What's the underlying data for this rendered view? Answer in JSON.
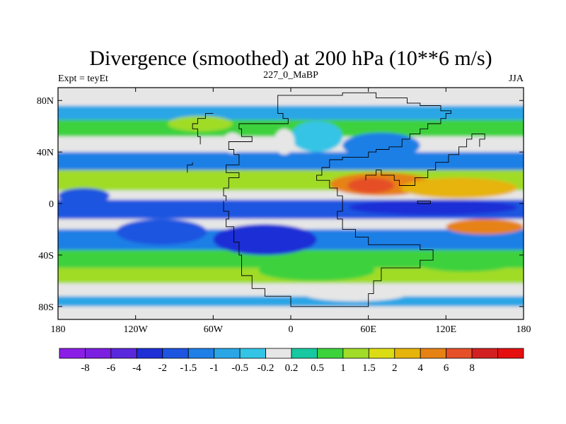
{
  "chart_data": {
    "type": "heatmap",
    "title": "Divergence (smoothed) at 200 hPa (10**6 m/s)",
    "left_label": "Expt = teyEt",
    "center_label": "227_0_MaBP",
    "right_label": "JJA",
    "x_ticks": [
      {
        "value": -180,
        "label": "180"
      },
      {
        "value": -120,
        "label": "120W"
      },
      {
        "value": -60,
        "label": "60W"
      },
      {
        "value": 0,
        "label": "0"
      },
      {
        "value": 60,
        "label": "60E"
      },
      {
        "value": 120,
        "label": "120E"
      },
      {
        "value": 180,
        "label": "180"
      }
    ],
    "y_ticks": [
      {
        "value": 80,
        "label": "80N"
      },
      {
        "value": 40,
        "label": "40N"
      },
      {
        "value": 0,
        "label": "0"
      },
      {
        "value": -40,
        "label": "40S"
      },
      {
        "value": -80,
        "label": "80S"
      }
    ],
    "xlim": [
      -180,
      180
    ],
    "ylim": [
      -90,
      90
    ],
    "colorbar": {
      "colors": [
        "#8a1ee6",
        "#7b1fe0",
        "#5a28dc",
        "#1f2fd6",
        "#1e55e0",
        "#1e7fe6",
        "#2aa6e6",
        "#34c4e6",
        "#e6e6e6",
        "#17c8a0",
        "#3cd23c",
        "#a0dc28",
        "#dcdc14",
        "#e6b40a",
        "#e68214",
        "#e65028",
        "#d22020",
        "#e60f0f"
      ],
      "labels": [
        "-8",
        "-6",
        "-4",
        "-2",
        "-1.5",
        "-1",
        "-0.5",
        "-0.2",
        "0.2",
        "0.5",
        "1",
        "1.5",
        "2",
        "4",
        "6",
        "8"
      ]
    },
    "bands": [
      {
        "lat_from": 90,
        "lat_to": 76,
        "color": "#e6e6e6"
      },
      {
        "lat_from": 76,
        "lat_to": 65,
        "color": "#2aa6e6"
      },
      {
        "lat_from": 65,
        "lat_to": 52,
        "color": "#3cd23c"
      },
      {
        "lat_from": 52,
        "lat_to": 40,
        "color": "#e6e6e6"
      },
      {
        "lat_from": 40,
        "lat_to": 26,
        "color": "#1e7fe6"
      },
      {
        "lat_from": 26,
        "lat_to": 10,
        "color": "#a0dc28"
      },
      {
        "lat_from": 10,
        "lat_to": 3,
        "color": "#e6e6e6"
      },
      {
        "lat_from": 3,
        "lat_to": -12,
        "color": "#1e55e0"
      },
      {
        "lat_from": -12,
        "lat_to": -20,
        "color": "#e6e6e6"
      },
      {
        "lat_from": -20,
        "lat_to": -36,
        "color": "#1e7fe6"
      },
      {
        "lat_from": -36,
        "lat_to": -50,
        "color": "#3cd23c"
      },
      {
        "lat_from": -50,
        "lat_to": -62,
        "color": "#a0dc28"
      },
      {
        "lat_from": -62,
        "lat_to": -72,
        "color": "#e6e6e6"
      },
      {
        "lat_from": -72,
        "lat_to": -80,
        "color": "#2aa6e6"
      },
      {
        "lat_from": -80,
        "lat_to": -90,
        "color": "#e6e6e6"
      }
    ],
    "blobs": [
      {
        "lon": 70,
        "lat": 15,
        "rlon": 40,
        "rlat": 9,
        "color": "#e68214"
      },
      {
        "lon": 62,
        "lat": 14,
        "rlon": 18,
        "rlat": 6,
        "color": "#e65028"
      },
      {
        "lon": 130,
        "lat": 12,
        "rlon": 45,
        "rlat": 8,
        "color": "#e6b40a"
      },
      {
        "lon": 110,
        "lat": -3,
        "rlon": 65,
        "rlat": 6,
        "color": "#1f2fd6"
      },
      {
        "lon": -20,
        "lat": -28,
        "rlon": 40,
        "rlat": 12,
        "color": "#1f2fd6"
      },
      {
        "lon": -100,
        "lat": -22,
        "rlon": 35,
        "rlat": 10,
        "color": "#1e55e0"
      },
      {
        "lon": -160,
        "lat": 6,
        "rlon": 20,
        "rlat": 6,
        "color": "#1e55e0"
      },
      {
        "lon": 20,
        "lat": 52,
        "rlon": 20,
        "rlat": 12,
        "color": "#34c4e6"
      },
      {
        "lon": -45,
        "lat": 47,
        "rlon": 8,
        "rlat": 8,
        "color": "#e6e6e6"
      },
      {
        "lon": -5,
        "lat": 48,
        "rlon": 8,
        "rlat": 10,
        "color": "#e6e6e6"
      },
      {
        "lon": 70,
        "lat": 45,
        "rlon": 30,
        "rlat": 10,
        "color": "#1e7fe6"
      },
      {
        "lon": 150,
        "lat": -18,
        "rlon": 30,
        "rlat": 6,
        "color": "#e68214"
      },
      {
        "lon": 135,
        "lat": -45,
        "rlon": 40,
        "rlat": 8,
        "color": "#3cd23c"
      },
      {
        "lon": 20,
        "lat": -52,
        "rlon": 45,
        "rlat": 8,
        "color": "#3cd23c"
      },
      {
        "lon": 50,
        "lat": -70,
        "rlon": 40,
        "rlat": 6,
        "color": "#e6e6e6"
      },
      {
        "lon": -70,
        "lat": 62,
        "rlon": 25,
        "rlat": 6,
        "color": "#a0dc28"
      }
    ],
    "coastline": [
      [
        [
          -10,
          78
        ],
        [
          -10,
          70
        ],
        [
          -6,
          70
        ],
        [
          -6,
          66
        ],
        [
          -2,
          66
        ],
        [
          -2,
          62
        ],
        [
          -40,
          62
        ],
        [
          -40,
          58
        ],
        [
          -38,
          58
        ],
        [
          -38,
          52
        ],
        [
          -30,
          52
        ],
        [
          -30,
          48
        ],
        [
          -48,
          48
        ],
        [
          -48,
          42
        ],
        [
          -44,
          42
        ],
        [
          -44,
          38
        ],
        [
          -40,
          38
        ],
        [
          -40,
          30
        ],
        [
          -50,
          30
        ],
        [
          -50,
          26
        ],
        [
          -50,
          24
        ],
        [
          -40,
          24
        ],
        [
          -40,
          20
        ],
        [
          -48,
          20
        ],
        [
          -48,
          12
        ],
        [
          -52,
          12
        ],
        [
          -52,
          6
        ],
        [
          -50,
          6
        ],
        [
          -50,
          2
        ]
      ],
      [
        [
          -52,
          2
        ],
        [
          -52,
          -6
        ],
        [
          -48,
          -6
        ],
        [
          -48,
          -12
        ],
        [
          -50,
          -12
        ],
        [
          -50,
          -18
        ],
        [
          -44,
          -18
        ],
        [
          -44,
          -30
        ],
        [
          -40,
          -30
        ],
        [
          -40,
          -40
        ],
        [
          -38,
          -40
        ],
        [
          -38,
          -56
        ],
        [
          -30,
          -56
        ],
        [
          -30,
          -66
        ],
        [
          -20,
          -66
        ],
        [
          -20,
          -72
        ],
        [
          0,
          -72
        ],
        [
          0,
          -80
        ],
        [
          60,
          -80
        ],
        [
          60,
          -70
        ],
        [
          64,
          -70
        ],
        [
          64,
          -60
        ],
        [
          70,
          -60
        ],
        [
          70,
          -50
        ],
        [
          100,
          -50
        ],
        [
          100,
          -44
        ],
        [
          110,
          -44
        ],
        [
          110,
          -36
        ],
        [
          100,
          -36
        ],
        [
          100,
          -32
        ],
        [
          60,
          -32
        ],
        [
          60,
          -26
        ],
        [
          50,
          -26
        ],
        [
          50,
          -20
        ],
        [
          40,
          -20
        ],
        [
          40,
          -12
        ],
        [
          36,
          -12
        ],
        [
          36,
          -6
        ],
        [
          40,
          -6
        ],
        [
          40,
          0
        ]
      ],
      [
        [
          40,
          0
        ],
        [
          40,
          6
        ],
        [
          36,
          6
        ],
        [
          36,
          12
        ],
        [
          30,
          12
        ],
        [
          30,
          18
        ],
        [
          20,
          18
        ],
        [
          20,
          22
        ],
        [
          24,
          22
        ],
        [
          24,
          28
        ],
        [
          30,
          28
        ],
        [
          30,
          34
        ],
        [
          40,
          34
        ],
        [
          40,
          36
        ],
        [
          60,
          36
        ],
        [
          60,
          40
        ],
        [
          66,
          40
        ],
        [
          66,
          42
        ],
        [
          76,
          42
        ],
        [
          76,
          44
        ],
        [
          86,
          44
        ],
        [
          86,
          50
        ],
        [
          92,
          50
        ],
        [
          92,
          54
        ],
        [
          100,
          54
        ],
        [
          100,
          58
        ],
        [
          106,
          58
        ],
        [
          106,
          62
        ],
        [
          116,
          62
        ],
        [
          116,
          66
        ],
        [
          120,
          66
        ],
        [
          120,
          70
        ],
        [
          124,
          70
        ],
        [
          124,
          72
        ],
        [
          116,
          72
        ],
        [
          116,
          76
        ],
        [
          100,
          76
        ],
        [
          100,
          78
        ],
        [
          90,
          78
        ],
        [
          90,
          82
        ],
        [
          66,
          82
        ],
        [
          66,
          86
        ],
        [
          40,
          86
        ],
        [
          40,
          84
        ],
        [
          -10,
          84
        ],
        [
          -10,
          78
        ]
      ],
      [
        [
          58,
          18
        ],
        [
          58,
          22
        ],
        [
          66,
          22
        ],
        [
          66,
          26
        ],
        [
          70,
          26
        ],
        [
          70,
          22
        ],
        [
          80,
          22
        ],
        [
          80,
          18
        ],
        [
          84,
          18
        ],
        [
          84,
          14
        ],
        [
          90,
          14
        ]
      ],
      [
        [
          90,
          14
        ],
        [
          96,
          14
        ],
        [
          96,
          20
        ],
        [
          106,
          20
        ],
        [
          106,
          26
        ],
        [
          112,
          26
        ],
        [
          112,
          32
        ],
        [
          122,
          32
        ],
        [
          122,
          38
        ],
        [
          130,
          38
        ],
        [
          130,
          44
        ],
        [
          136,
          44
        ],
        [
          136,
          50
        ],
        [
          140,
          50
        ],
        [
          140,
          54
        ],
        [
          150,
          54
        ],
        [
          150,
          50
        ],
        [
          146,
          50
        ],
        [
          146,
          44
        ]
      ],
      [
        [
          -70,
          46
        ],
        [
          -70,
          52
        ],
        [
          -72,
          52
        ],
        [
          -72,
          58
        ],
        [
          -76,
          58
        ],
        [
          -76,
          62
        ],
        [
          -72,
          62
        ],
        [
          -72,
          66
        ],
        [
          -66,
          66
        ],
        [
          -66,
          70
        ],
        [
          -60,
          70
        ]
      ],
      [
        [
          98,
          0
        ],
        [
          98,
          2
        ],
        [
          108,
          2
        ],
        [
          108,
          0
        ],
        [
          98,
          0
        ]
      ],
      [
        [
          -80,
          24
        ],
        [
          -80,
          30
        ],
        [
          -76,
          30
        ],
        [
          -76,
          32
        ]
      ]
    ]
  }
}
